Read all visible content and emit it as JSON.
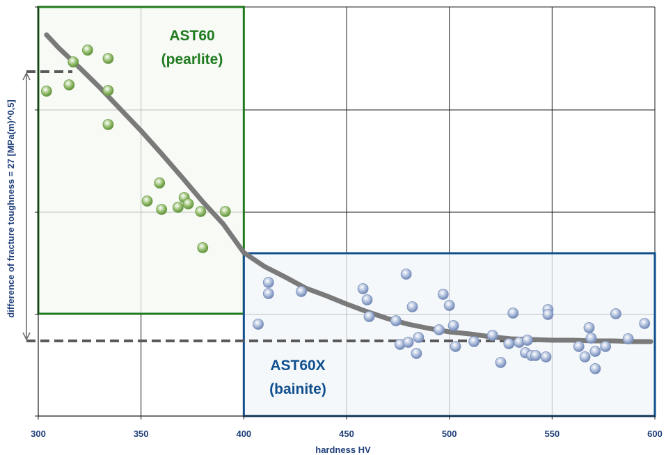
{
  "chart_data": {
    "type": "scatter",
    "title": "",
    "xlabel": "hardness HV",
    "ylabel": "difference of fracture toughness = 27 [MPa(m)^0,5]",
    "xlim": [
      300,
      600
    ],
    "x_ticks": [
      "300",
      "350",
      "400",
      "450",
      "500",
      "550",
      "600"
    ],
    "grid": true,
    "regions": [
      {
        "label_line1": "AST60",
        "label_line2": "(pearlite)",
        "color": "#1e7a1e",
        "fill": "#f4f8f1",
        "x_range": [
          300,
          400
        ]
      },
      {
        "label_line1": "AST60X",
        "label_line2": "(bainite)",
        "color": "#0f4f8e",
        "fill": "#f1f5fa",
        "x_range": [
          400,
          600
        ]
      }
    ],
    "series": [
      {
        "color": "#93bd6b",
        "points": [
          [
            304,
            131
          ],
          [
            315,
            122
          ],
          [
            317,
            89
          ],
          [
            324,
            72
          ],
          [
            334,
            84
          ],
          [
            334,
            130
          ],
          [
            334,
            179
          ],
          [
            353,
            289
          ],
          [
            359,
            263
          ],
          [
            360,
            301
          ],
          [
            368,
            298
          ],
          [
            371,
            284
          ],
          [
            373,
            293
          ],
          [
            379,
            304
          ],
          [
            380,
            356
          ],
          [
            391,
            304
          ]
        ]
      },
      {
        "color": "#a7b8d8",
        "points": [
          [
            407,
            466
          ],
          [
            412,
            406
          ],
          [
            412,
            422
          ],
          [
            428,
            419
          ],
          [
            458,
            415
          ],
          [
            460,
            431
          ],
          [
            461,
            455
          ],
          [
            474,
            461
          ],
          [
            476,
            495
          ],
          [
            479,
            394
          ],
          [
            480,
            492
          ],
          [
            482,
            441
          ],
          [
            484,
            508
          ],
          [
            485,
            485
          ],
          [
            495,
            474
          ],
          [
            497,
            423
          ],
          [
            500,
            439
          ],
          [
            502,
            468
          ],
          [
            503,
            498
          ],
          [
            512,
            491
          ],
          [
            521,
            482
          ],
          [
            525,
            521
          ],
          [
            529,
            494
          ],
          [
            531,
            450
          ],
          [
            534,
            492
          ],
          [
            537,
            507
          ],
          [
            538,
            489
          ],
          [
            540,
            511
          ],
          [
            542,
            511
          ],
          [
            547,
            513
          ],
          [
            548,
            445
          ],
          [
            548,
            452
          ],
          [
            563,
            498
          ],
          [
            566,
            513
          ],
          [
            568,
            471
          ],
          [
            569,
            486
          ],
          [
            571,
            505
          ],
          [
            571,
            530
          ],
          [
            576,
            498
          ],
          [
            581,
            451
          ],
          [
            587,
            487
          ],
          [
            595,
            465
          ]
        ]
      }
    ],
    "trend_line": [
      [
        304,
        50
      ],
      [
        310,
        69
      ],
      [
        320,
        97
      ],
      [
        330,
        126
      ],
      [
        340,
        157
      ],
      [
        350,
        188
      ],
      [
        360,
        221
      ],
      [
        370,
        255
      ],
      [
        380,
        290
      ],
      [
        390,
        322
      ],
      [
        400,
        363
      ],
      [
        410,
        383
      ],
      [
        420,
        398
      ],
      [
        430,
        414
      ],
      [
        440,
        425
      ],
      [
        450,
        437
      ],
      [
        460,
        448
      ],
      [
        470,
        458
      ],
      [
        480,
        466
      ],
      [
        490,
        472
      ],
      [
        500,
        477
      ],
      [
        510,
        480
      ],
      [
        520,
        484
      ],
      [
        530,
        487
      ],
      [
        540,
        488
      ],
      [
        550,
        489
      ],
      [
        560,
        489
      ],
      [
        570,
        490
      ],
      [
        580,
        490
      ],
      [
        590,
        491
      ],
      [
        598,
        491
      ]
    ],
    "reference_levels": [
      103,
      490
    ]
  }
}
